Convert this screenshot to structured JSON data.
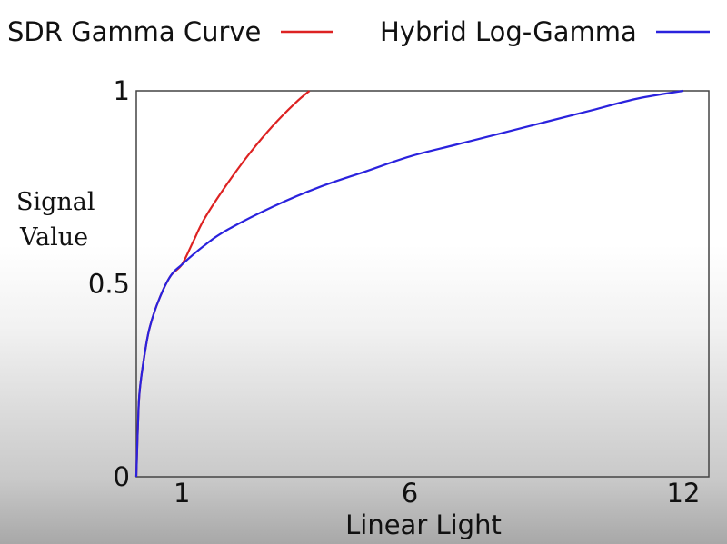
{
  "chart_data": {
    "type": "line",
    "xlabel": "Linear Light",
    "ylabel": [
      "Signal",
      "Value"
    ],
    "xlim": [
      0,
      12
    ],
    "ylim": [
      0,
      1
    ],
    "xticks": [
      {
        "value": 1,
        "label": "1"
      },
      {
        "value": 6,
        "label": "6"
      },
      {
        "value": 12,
        "label": "12"
      }
    ],
    "yticks": [
      {
        "value": 0,
        "label": "0"
      },
      {
        "value": 0.5,
        "label": "0.5"
      },
      {
        "value": 1,
        "label": "1"
      }
    ],
    "grid": false,
    "legend_position": "top",
    "series": [
      {
        "name": "SDR Gamma Curve",
        "color": "#dd2222",
        "x": [
          0,
          0.05,
          0.1,
          0.2,
          0.3,
          0.5,
          0.75,
          1.0,
          1.25,
          1.5,
          2.0,
          2.5,
          3.0,
          3.5,
          3.8
        ],
        "y": [
          0,
          0.18,
          0.25,
          0.33,
          0.39,
          0.46,
          0.52,
          0.55,
          0.61,
          0.67,
          0.76,
          0.84,
          0.91,
          0.97,
          1.0
        ]
      },
      {
        "name": "Hybrid Log-Gamma",
        "color": "#2a22dd",
        "x": [
          0,
          0.05,
          0.1,
          0.2,
          0.3,
          0.5,
          0.75,
          1.0,
          1.5,
          2.0,
          3.0,
          4.0,
          5.0,
          6.0,
          7.0,
          8.0,
          9.0,
          10.0,
          11.0,
          12.0
        ],
        "y": [
          0,
          0.18,
          0.25,
          0.33,
          0.39,
          0.46,
          0.52,
          0.55,
          0.6,
          0.64,
          0.7,
          0.75,
          0.79,
          0.83,
          0.86,
          0.89,
          0.92,
          0.95,
          0.98,
          1.0
        ]
      }
    ]
  }
}
